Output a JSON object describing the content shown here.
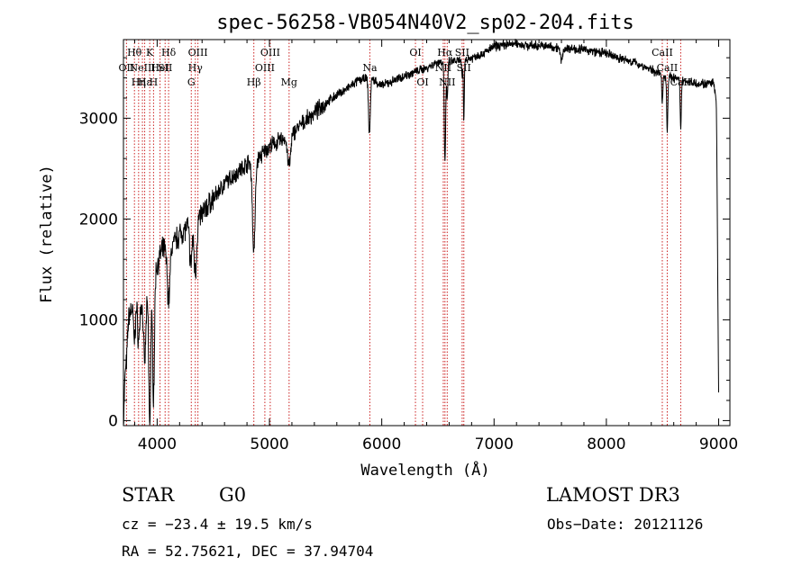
{
  "chart_data": {
    "type": "line",
    "title": "spec-56258-VB054N40V2_sp02-204.fits",
    "xlabel": "Wavelength (Å)",
    "ylabel": "Flux (relative)",
    "xlim": [
      3700,
      9100
    ],
    "ylim": [
      -50,
      3780
    ],
    "xticks": [
      4000,
      5000,
      6000,
      7000,
      8000,
      9000
    ],
    "yticks": [
      0,
      1000,
      2000,
      3000
    ],
    "series": [
      {
        "name": "flux",
        "continuum": [
          [
            3700,
            700
          ],
          [
            3720,
            950
          ],
          [
            3760,
            1080
          ],
          [
            3800,
            1150
          ],
          [
            3850,
            1120
          ],
          [
            3900,
            1200
          ],
          [
            3950,
            1250
          ],
          [
            4000,
            1550
          ],
          [
            4050,
            1700
          ],
          [
            4100,
            1700
          ],
          [
            4150,
            1760
          ],
          [
            4200,
            1850
          ],
          [
            4250,
            1900
          ],
          [
            4300,
            1950
          ],
          [
            4350,
            1980
          ],
          [
            4400,
            2050
          ],
          [
            4500,
            2200
          ],
          [
            4600,
            2350
          ],
          [
            4700,
            2450
          ],
          [
            4800,
            2550
          ],
          [
            4900,
            2600
          ],
          [
            5000,
            2720
          ],
          [
            5100,
            2780
          ],
          [
            5200,
            2850
          ],
          [
            5300,
            2950
          ],
          [
            5400,
            3050
          ],
          [
            5500,
            3150
          ],
          [
            5600,
            3230
          ],
          [
            5700,
            3300
          ],
          [
            5800,
            3380
          ],
          [
            5900,
            3400
          ],
          [
            6000,
            3320
          ],
          [
            6100,
            3370
          ],
          [
            6200,
            3420
          ],
          [
            6300,
            3460
          ],
          [
            6400,
            3500
          ],
          [
            6500,
            3560
          ],
          [
            6600,
            3560
          ],
          [
            6700,
            3570
          ],
          [
            6800,
            3600
          ],
          [
            6900,
            3640
          ],
          [
            7000,
            3710
          ],
          [
            7100,
            3730
          ],
          [
            7200,
            3740
          ],
          [
            7300,
            3720
          ],
          [
            7400,
            3720
          ],
          [
            7500,
            3710
          ],
          [
            7600,
            3700
          ],
          [
            7700,
            3690
          ],
          [
            7800,
            3680
          ],
          [
            7900,
            3660
          ],
          [
            8000,
            3640
          ],
          [
            8100,
            3600
          ],
          [
            8200,
            3570
          ],
          [
            8300,
            3530
          ],
          [
            8400,
            3480
          ],
          [
            8500,
            3430
          ],
          [
            8600,
            3400
          ],
          [
            8700,
            3370
          ],
          [
            8800,
            3350
          ],
          [
            8900,
            3340
          ],
          [
            8950,
            3350
          ],
          [
            8980,
            3200
          ],
          [
            9000,
            1000
          ]
        ],
        "absorption": [
          [
            3700,
            700,
            12
          ],
          [
            3727,
            350,
            8
          ],
          [
            3798,
            350,
            8
          ],
          [
            3835,
            350,
            8
          ],
          [
            3889,
            600,
            10
          ],
          [
            3934,
            1300,
            8
          ],
          [
            3968,
            1100,
            8
          ],
          [
            4102,
            500,
            12
          ],
          [
            4300,
            400,
            10
          ],
          [
            4340,
            500,
            12
          ],
          [
            4861,
            900,
            12
          ],
          [
            5175,
            300,
            15
          ],
          [
            5890,
            550,
            8
          ],
          [
            6563,
            1000,
            6
          ],
          [
            6583,
            400,
            5
          ],
          [
            6716,
            200,
            4
          ],
          [
            6731,
            600,
            4
          ],
          [
            7600,
            120,
            12
          ],
          [
            8498,
            300,
            5
          ],
          [
            8542,
            550,
            5
          ],
          [
            8662,
            500,
            5
          ],
          [
            9000,
            700,
            10
          ]
        ]
      }
    ],
    "line_marks": [
      {
        "wl": 3727,
        "label": "OII",
        "row": 2
      },
      {
        "wl": 3798,
        "label": "Hθ",
        "row": 1
      },
      {
        "wl": 3835,
        "label": "Hη",
        "row": 3
      },
      {
        "wl": 3869,
        "label": "NeIII",
        "row": 2
      },
      {
        "wl": 3889,
        "label": "Hε",
        "row": 3
      },
      {
        "wl": 3934,
        "label": "K",
        "row": 1
      },
      {
        "wl": 3968,
        "label": "H",
        "row": 3
      },
      {
        "wl": 4026,
        "label": "HeI",
        "row": 2
      },
      {
        "wl": 4071,
        "label": "SII",
        "row": 2
      },
      {
        "wl": 4102,
        "label": "Hδ",
        "row": 1
      },
      {
        "wl": 4304,
        "label": "G",
        "row": 3
      },
      {
        "wl": 4340,
        "label": "Hγ",
        "row": 2
      },
      {
        "wl": 4363,
        "label": "OIII",
        "row": 1
      },
      {
        "wl": 4861,
        "label": "Hβ",
        "row": 3
      },
      {
        "wl": 4959,
        "label": "OIII",
        "row": 2
      },
      {
        "wl": 5007,
        "label": "OIII",
        "row": 1
      },
      {
        "wl": 5175,
        "label": "Mg",
        "row": 3
      },
      {
        "wl": 5894,
        "label": "Na",
        "row": 2
      },
      {
        "wl": 6300,
        "label": "OI",
        "row": 1
      },
      {
        "wl": 6364,
        "label": "OI",
        "row": 3
      },
      {
        "wl": 6548,
        "label": "NII",
        "row": 2
      },
      {
        "wl": 6563,
        "label": "Hα",
        "row": 1
      },
      {
        "wl": 6583,
        "label": "NII",
        "row": 3
      },
      {
        "wl": 6716,
        "label": "SII",
        "row": 1
      },
      {
        "wl": 6731,
        "label": "SII",
        "row": 2
      },
      {
        "wl": 8498,
        "label": "CaII",
        "row": 1
      },
      {
        "wl": 8542,
        "label": "CaII",
        "row": 2
      },
      {
        "wl": 8662,
        "label": "CaII",
        "row": 3
      }
    ]
  },
  "info": {
    "object_class": "STAR",
    "subclass": "G0",
    "survey": "LAMOST DR3",
    "redshift": "cz = −23.4 ± 19.5 km/s",
    "obs_date": "Obs−Date: 20121126",
    "coords": "RA =  52.75621, DEC =  37.94704"
  },
  "colors": {
    "spectrum": "#000000",
    "line_marker": "#cc2222",
    "axis": "#000000",
    "background": "#ffffff"
  }
}
